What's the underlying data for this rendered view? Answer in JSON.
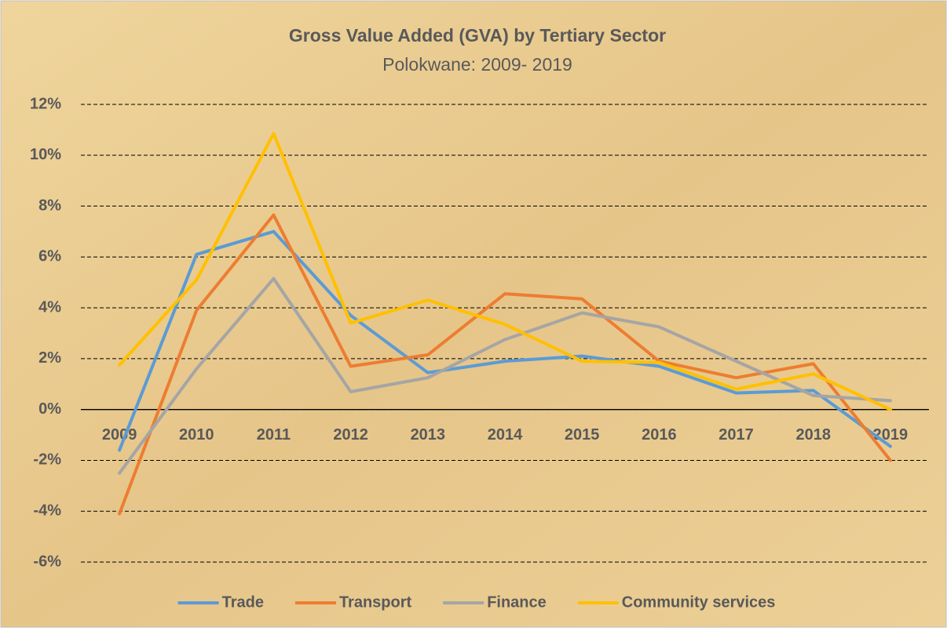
{
  "chart_data": {
    "type": "line",
    "title": "Gross Value Added (GVA) by Tertiary Sector",
    "subtitle": "Polokwane: 2009- 2019",
    "categories": [
      "2009",
      "2010",
      "2011",
      "2012",
      "2013",
      "2014",
      "2015",
      "2016",
      "2017",
      "2018",
      "2019"
    ],
    "series": [
      {
        "name": "Trade",
        "color": "#5b9bd5",
        "values": [
          -1.6,
          6.1,
          7.0,
          3.7,
          1.45,
          1.9,
          2.1,
          1.7,
          0.65,
          0.75,
          -1.45
        ]
      },
      {
        "name": "Transport",
        "color": "#ed7d31",
        "values": [
          -4.1,
          3.9,
          7.65,
          1.7,
          2.15,
          4.55,
          4.35,
          1.9,
          1.25,
          1.8,
          -2.0
        ]
      },
      {
        "name": "Finance",
        "color": "#a5a5a5",
        "values": [
          -2.5,
          1.6,
          5.15,
          0.7,
          1.25,
          2.75,
          3.8,
          3.25,
          1.9,
          0.55,
          0.35
        ]
      },
      {
        "name": "Community services",
        "color": "#ffc000",
        "values": [
          1.75,
          5.1,
          10.85,
          3.4,
          4.3,
          3.35,
          1.9,
          1.85,
          0.8,
          1.4,
          0
        ]
      }
    ],
    "ylim": [
      -6,
      12
    ],
    "yticks": [
      {
        "value": -6,
        "label": "-6%"
      },
      {
        "value": -4,
        "label": "-4%"
      },
      {
        "value": -2,
        "label": "-2%"
      },
      {
        "value": 0,
        "label": "0%"
      },
      {
        "value": 2,
        "label": "2%"
      },
      {
        "value": 4,
        "label": "4%"
      },
      {
        "value": 6,
        "label": "6%"
      },
      {
        "value": 8,
        "label": "8%"
      },
      {
        "value": 10,
        "label": "10%"
      },
      {
        "value": 12,
        "label": "12%"
      }
    ],
    "grid": true,
    "legend": "bottom"
  }
}
